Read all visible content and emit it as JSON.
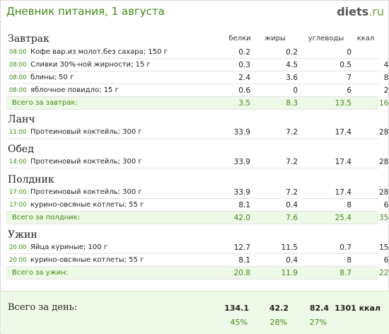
{
  "header": {
    "title": "Дневник питания, 1 августа",
    "logo_main": "diets",
    "logo_tld": ".ru"
  },
  "columns": {
    "protein": "белки",
    "fat": "жиры",
    "carbs": "углеводы",
    "kcal": "ккал"
  },
  "meals": {
    "breakfast": {
      "title": "Завтрак",
      "items": [
        {
          "time": "08:00",
          "name": "Кофе вар.из молот.без сахара; 150 г",
          "protein": "0.2",
          "fat": "0.2",
          "carbs": "0",
          "kcal": "3"
        },
        {
          "time": "08:00",
          "name": "Сливки 30%-ной жирности; 15 г",
          "protein": "0.3",
          "fat": "4.5",
          "carbs": "0.5",
          "kcal": "43"
        },
        {
          "time": "08:00",
          "name": "блины; 50 г",
          "protein": "2.4",
          "fat": "3.6",
          "carbs": "7",
          "kcal": "85"
        },
        {
          "time": "08:00",
          "name": "яблочное повидло; 15 г",
          "protein": "0.6",
          "fat": "0",
          "carbs": "6",
          "kcal": "29"
        }
      ],
      "total": {
        "label": "Всего за завтрак:",
        "protein": "3.5",
        "fat": "8.3",
        "carbs": "13.5",
        "kcal": "160"
      }
    },
    "lunch": {
      "title": "Ланч",
      "items": [
        {
          "time": "11:00",
          "name": "Протеиновый коктейль; 300 г",
          "protein": "33.9",
          "fat": "7.2",
          "carbs": "17.4",
          "kcal": "283"
        }
      ]
    },
    "dinner": {
      "title": "Обед",
      "items": [
        {
          "time": "14:00",
          "name": "Протеиновый коктейль; 300 г",
          "protein": "33.9",
          "fat": "7.2",
          "carbs": "17.4",
          "kcal": "283"
        }
      ]
    },
    "snack": {
      "title": "Полдник",
      "items": [
        {
          "time": "17:00",
          "name": "Протеиновый коктейль; 300 г",
          "protein": "33.9",
          "fat": "7.2",
          "carbs": "17.4",
          "kcal": "283"
        },
        {
          "time": "17:00",
          "name": "курино-овсяные котлеты; 55 г",
          "protein": "8.1",
          "fat": "0.4",
          "carbs": "8",
          "kcal": "69"
        }
      ],
      "total": {
        "label": "Всего за полдник:",
        "protein": "42.0",
        "fat": "7.6",
        "carbs": "25.4",
        "kcal": "352"
      }
    },
    "supper": {
      "title": "Ужин",
      "items": [
        {
          "time": "20:00",
          "name": "Яйца куриные; 100 г",
          "protein": "12.7",
          "fat": "11.5",
          "carbs": "0.7",
          "kcal": "154"
        },
        {
          "time": "20:00",
          "name": "курино-овсяные котлеты; 55 г",
          "protein": "8.1",
          "fat": "0.4",
          "carbs": "8",
          "kcal": "69"
        }
      ],
      "total": {
        "label": "Всего за ужин:",
        "protein": "20.8",
        "fat": "11.9",
        "carbs": "8.7",
        "kcal": "223"
      }
    }
  },
  "day_total": {
    "label": "Всего за день:",
    "protein": "134.1",
    "fat": "42.2",
    "carbs": "82.4",
    "kcal": "1301 ккал",
    "protein_pct": "45%",
    "fat_pct": "28%",
    "carbs_pct": "27%"
  },
  "colors": {
    "accent_green": "#3d8b12",
    "total_bg": "#eef8e6"
  }
}
